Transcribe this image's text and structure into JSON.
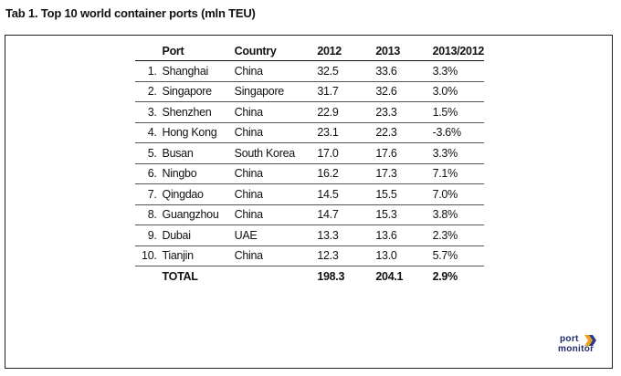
{
  "caption": "Tab 1. Top 10 world container ports (mln TEU)",
  "chart_data": {
    "type": "table",
    "columns": [
      "",
      "Port",
      "Country",
      "2012",
      "2013",
      "2013/2012"
    ],
    "rows": [
      {
        "rank": "1.",
        "port": "Shanghai",
        "country": "China",
        "v2012": "32.5",
        "v2013": "33.6",
        "change": "3.3%"
      },
      {
        "rank": "2.",
        "port": "Singapore",
        "country": "Singapore",
        "v2012": "31.7",
        "v2013": "32.6",
        "change": "3.0%"
      },
      {
        "rank": "3.",
        "port": "Shenzhen",
        "country": "China",
        "v2012": "22.9",
        "v2013": "23.3",
        "change": "1.5%"
      },
      {
        "rank": "4.",
        "port": "Hong Kong",
        "country": "China",
        "v2012": "23.1",
        "v2013": "22.3",
        "change": "-3.6%"
      },
      {
        "rank": "5.",
        "port": "Busan",
        "country": "South Korea",
        "v2012": "17.0",
        "v2013": "17.6",
        "change": "3.3%"
      },
      {
        "rank": "6.",
        "port": "Ningbo",
        "country": "China",
        "v2012": "16.2",
        "v2013": "17.3",
        "change": "7.1%"
      },
      {
        "rank": "7.",
        "port": "Qingdao",
        "country": "China",
        "v2012": "14.5",
        "v2013": "15.5",
        "change": "7.0%"
      },
      {
        "rank": "8.",
        "port": "Guangzhou",
        "country": "China",
        "v2012": "14.7",
        "v2013": "15.3",
        "change": "3.8%"
      },
      {
        "rank": "9.",
        "port": "Dubai",
        "country": "UAE",
        "v2012": "13.3",
        "v2013": "13.6",
        "change": "2.3%"
      },
      {
        "rank": "10.",
        "port": "Tianjin",
        "country": "China",
        "v2012": "12.3",
        "v2013": "13.0",
        "change": "5.7%"
      }
    ],
    "total": {
      "label": "TOTAL",
      "v2012": "198.3",
      "v2013": "204.1",
      "change": "2.9%"
    }
  },
  "logo": {
    "line1": "port",
    "line2": "monitor",
    "icon": "chevron-arrow-icon",
    "colors": {
      "text": "#1f2a6b",
      "arrow_orange": "#f0a020",
      "arrow_blue": "#2a3a8a"
    }
  }
}
